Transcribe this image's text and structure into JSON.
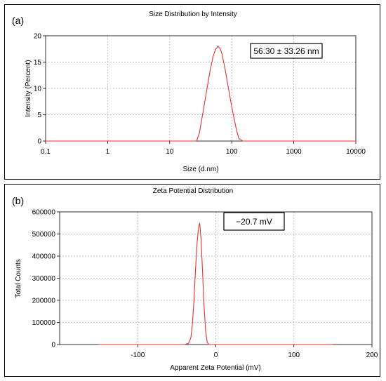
{
  "chart_data": [
    {
      "panel_label": "(a)",
      "type": "line",
      "title": "Size Distribution by Intensity",
      "xlabel": "Size (d.nm)",
      "ylabel": "Intensity (Percent)",
      "xscale": "log",
      "xlim": [
        0.1,
        10000
      ],
      "ylim": [
        0,
        20
      ],
      "x_ticks": [
        "0.1",
        "1",
        "10",
        "100",
        "1000",
        "10000"
      ],
      "y_ticks": [
        "0",
        "5",
        "10",
        "15",
        "20"
      ],
      "grid": true,
      "annotation": "56.30 ± 33.26 nm",
      "line_color": "#e8322e",
      "series": [
        {
          "x": [
            0.1,
            20,
            27,
            30,
            35,
            40,
            45,
            50,
            55,
            60,
            65,
            70,
            80,
            90,
            100,
            110,
            120,
            130,
            150,
            10000
          ],
          "values": [
            0,
            0,
            0,
            1.5,
            6,
            10,
            13.5,
            16,
            17.5,
            18,
            17.6,
            16.5,
            13,
            9.5,
            6.5,
            4,
            2,
            0.5,
            0,
            0
          ]
        }
      ]
    },
    {
      "panel_label": "(b)",
      "type": "line",
      "title": "Zeta Potential Distribution",
      "xlabel": "Apparent Zeta Potential (mV)",
      "ylabel": "Total Counts",
      "xlim": [
        -200,
        200
      ],
      "ylim": [
        0,
        600000
      ],
      "x_ticks": [
        "-100",
        "0",
        "100",
        "200"
      ],
      "y_ticks": [
        "0",
        "100000",
        "200000",
        "300000",
        "400000",
        "500000",
        "600000"
      ],
      "grid": true,
      "annotation": "−20.7 mV",
      "line_color": "#e8322e",
      "series": [
        {
          "x": [
            -150,
            -40,
            -35,
            -32,
            -30,
            -28,
            -26,
            -24,
            -22,
            -20.7,
            -19,
            -17,
            -15,
            -13,
            -11,
            -9,
            150
          ],
          "values": [
            0,
            0,
            5000,
            30000,
            90000,
            200000,
            340000,
            460000,
            530000,
            550000,
            480000,
            330000,
            170000,
            60000,
            10000,
            0,
            0
          ]
        }
      ]
    }
  ]
}
